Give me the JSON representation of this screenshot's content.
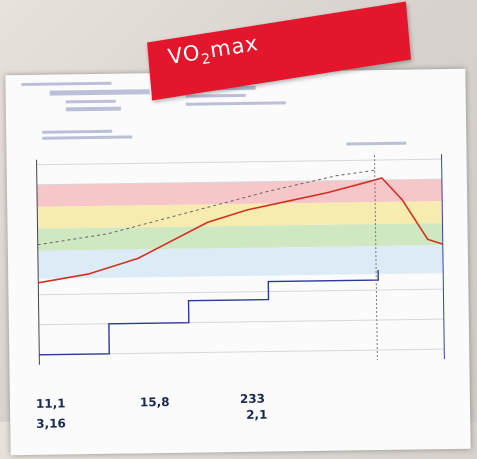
{
  "banner": {
    "text": "VO",
    "subscript": "2",
    "suffix": "max"
  },
  "report": {
    "stats": [
      "11,1",
      "3,16",
      "15,8",
      "233",
      "2,1"
    ]
  }
}
